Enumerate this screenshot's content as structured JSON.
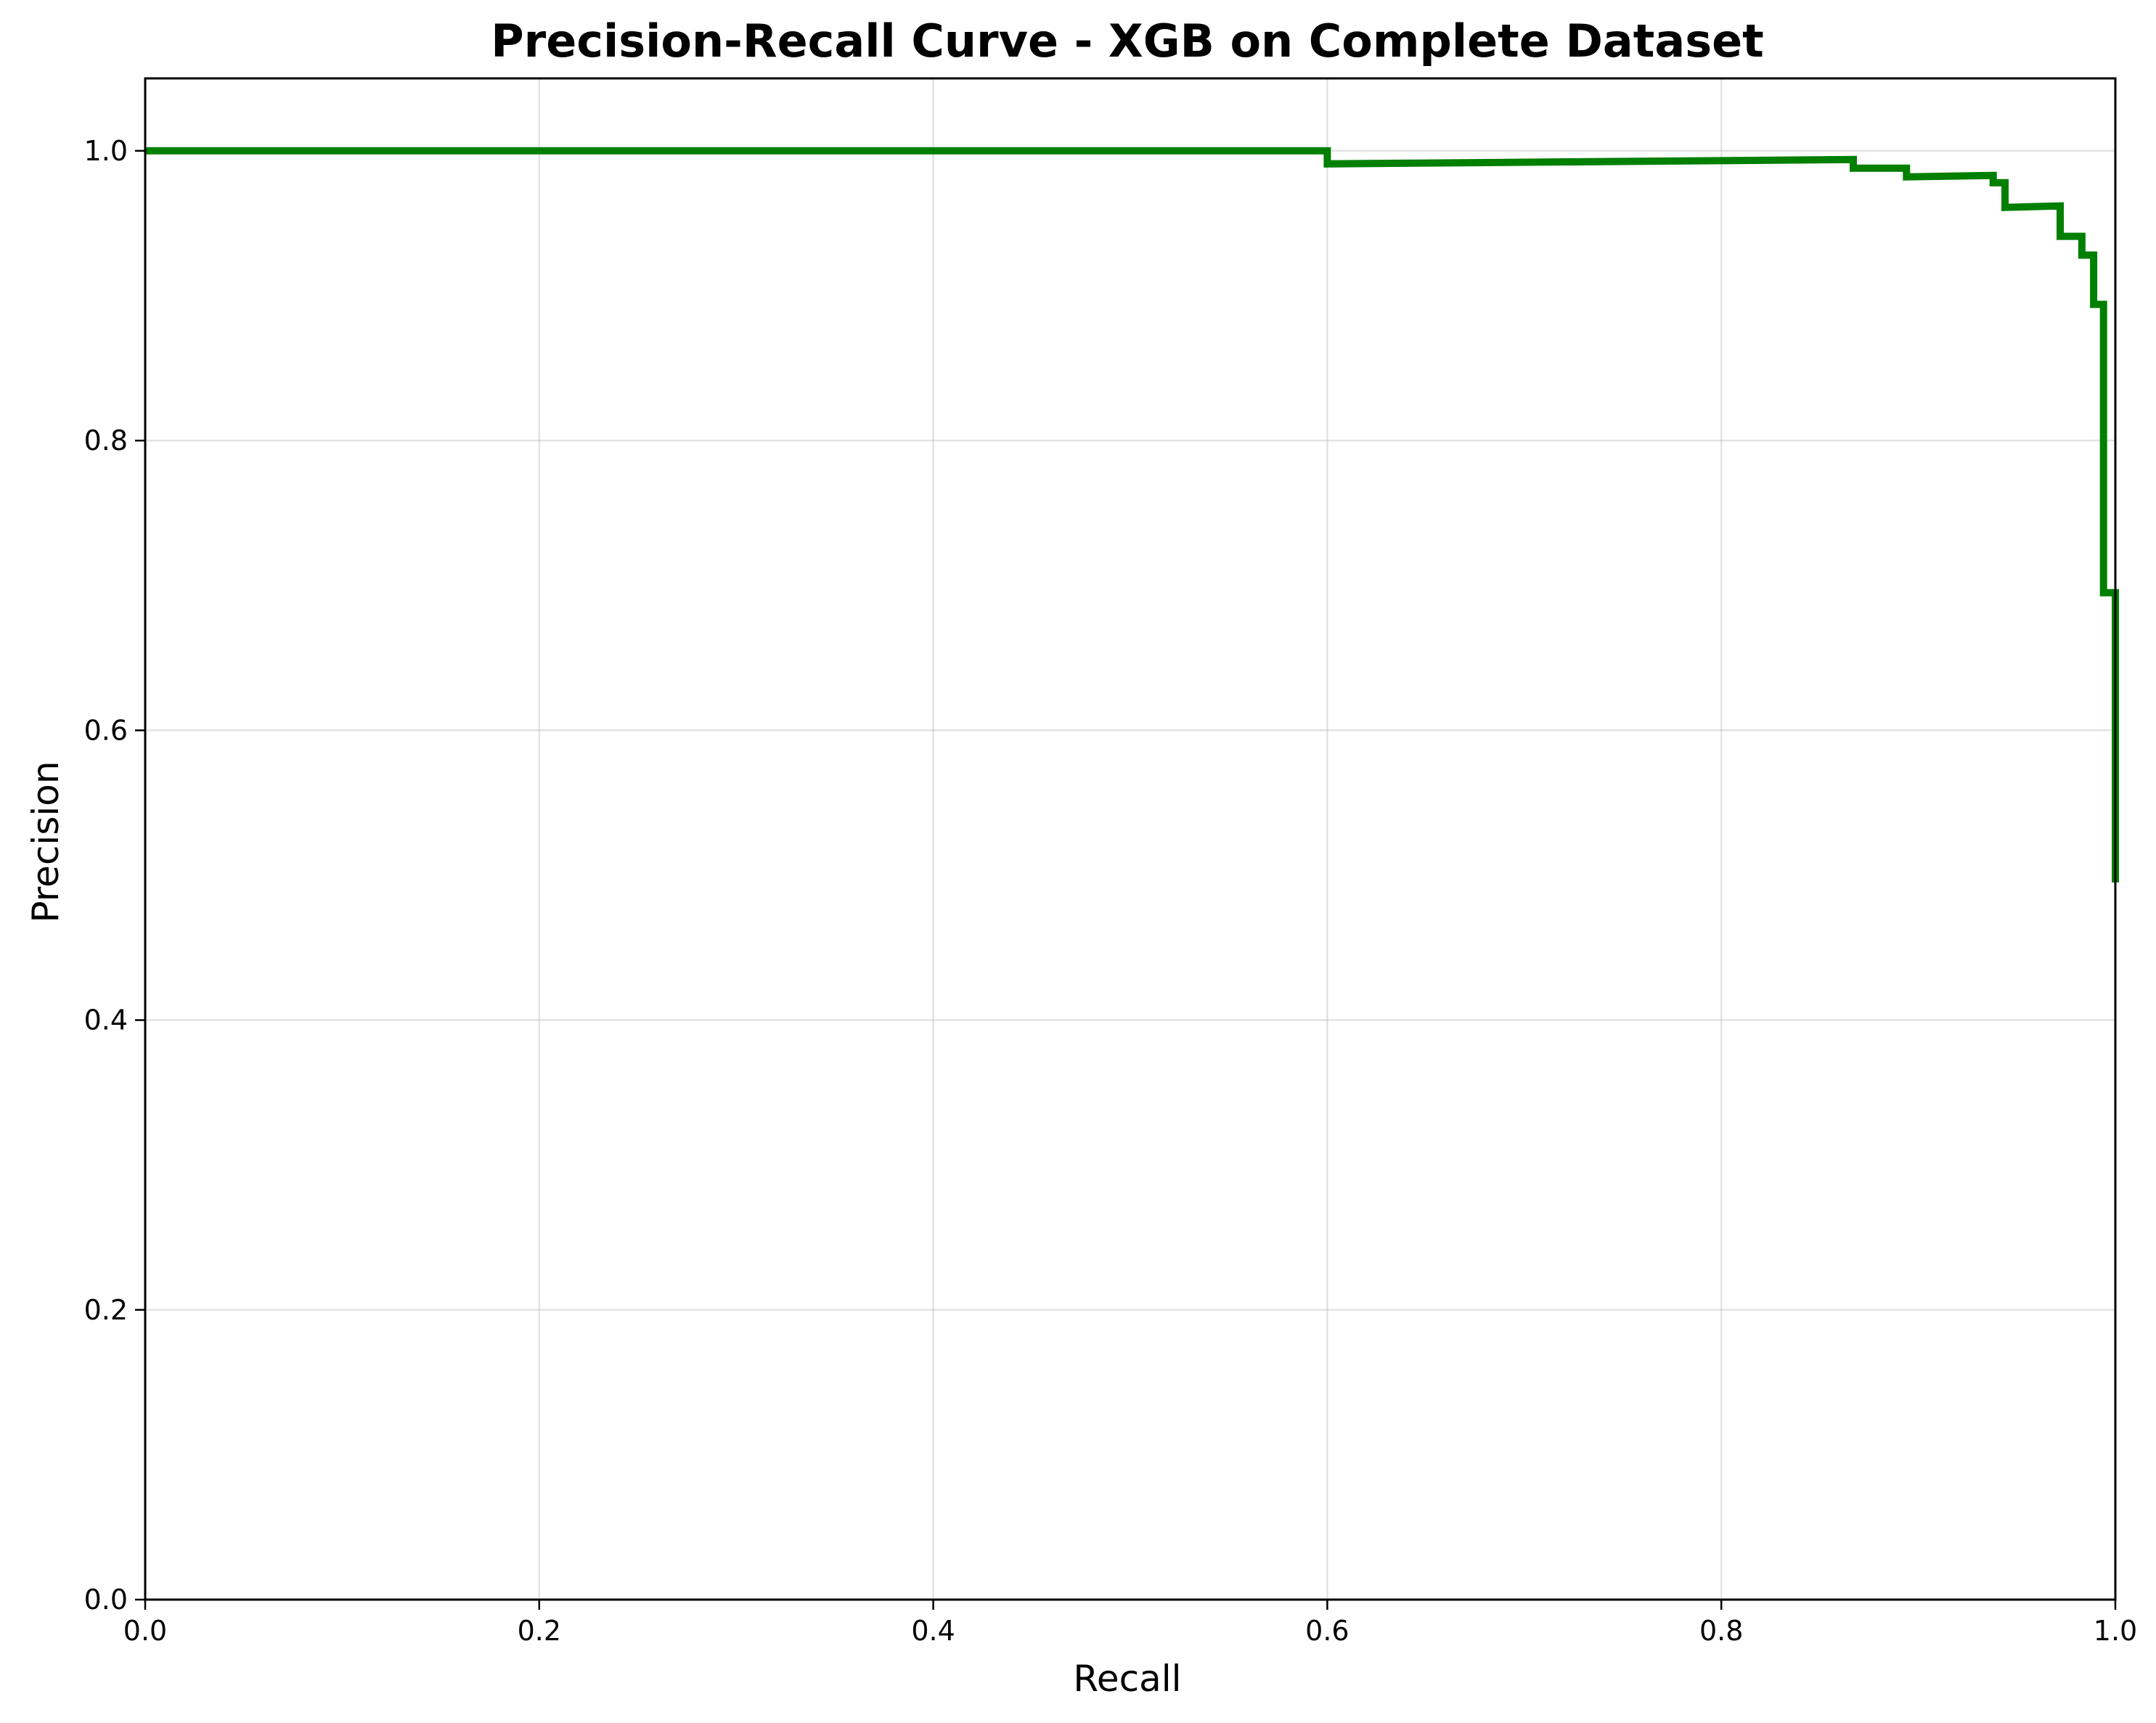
{
  "chart_data": {
    "type": "line",
    "title": "Precision-Recall Curve - XGB on Complete Dataset",
    "xlabel": "Recall",
    "ylabel": "Precision",
    "xlim": [
      0.0,
      1.0
    ],
    "ylim": [
      0.0,
      1.05
    ],
    "xticks": [
      "0.0",
      "0.2",
      "0.4",
      "0.6",
      "0.8",
      "1.0"
    ],
    "yticks": [
      "0.0",
      "0.2",
      "0.4",
      "0.6",
      "0.8",
      "1.0"
    ],
    "grid": true,
    "colors": {
      "series": "#007f00",
      "grid": "#b0b0b0",
      "axes": "#000000"
    },
    "series": [
      {
        "step": "post",
        "x": [
          0.0,
          0.6,
          0.6,
          0.867,
          0.867,
          0.894,
          0.894,
          0.938,
          0.938,
          0.944,
          0.944,
          0.972,
          0.972,
          0.983,
          0.983,
          0.989,
          0.989,
          0.994,
          0.994,
          1.0,
          1.0
        ],
        "y": [
          1.0,
          1.0,
          0.991,
          0.994,
          0.988,
          0.988,
          0.982,
          0.983,
          0.978,
          0.978,
          0.961,
          0.962,
          0.941,
          0.941,
          0.928,
          0.928,
          0.894,
          0.894,
          0.695,
          0.695,
          0.495
        ]
      }
    ]
  }
}
